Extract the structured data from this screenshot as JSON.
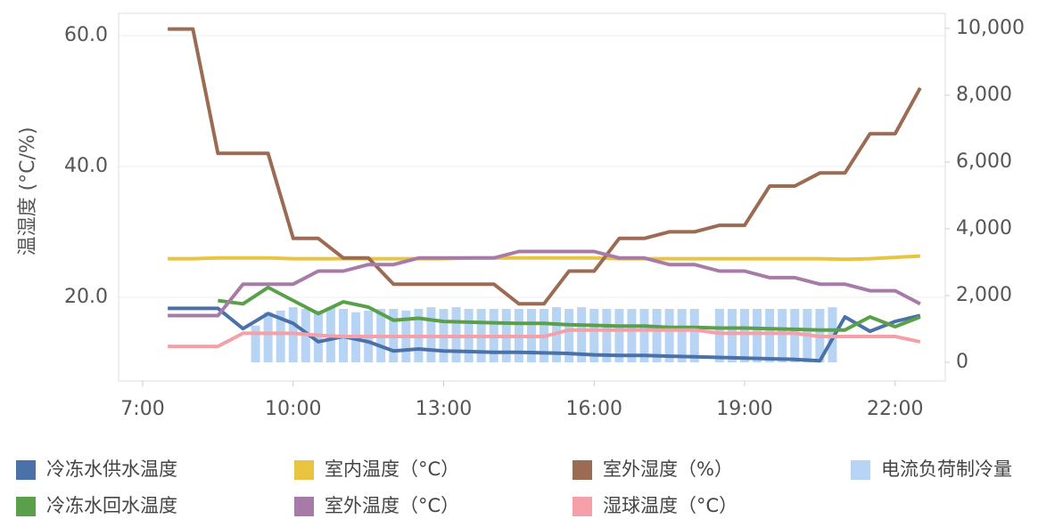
{
  "chart_data": {
    "type": "line",
    "ylabel": "温湿度 (°C/%)",
    "x": [
      7.5,
      8,
      8.5,
      9,
      9.5,
      10,
      10.5,
      11,
      11.5,
      12,
      12.5,
      13,
      13.5,
      14,
      14.5,
      15,
      15.5,
      16,
      16.5,
      17,
      17.5,
      18,
      18.5,
      19,
      19.5,
      20,
      20.5,
      21,
      21.5,
      22,
      22.5
    ],
    "xlim": [
      6.52,
      23.0
    ],
    "xticks": [
      {
        "value": 7,
        "label": "7:00"
      },
      {
        "value": 10,
        "label": "10:00"
      },
      {
        "value": 13,
        "label": "13:00"
      },
      {
        "value": 16,
        "label": "16:00"
      },
      {
        "value": 19,
        "label": "19:00"
      },
      {
        "value": 22,
        "label": "22:00"
      }
    ],
    "ylim": [
      7.2,
      63.4
    ],
    "yticks": [
      {
        "value": 20,
        "label": "20.0"
      },
      {
        "value": 40,
        "label": "40.0"
      },
      {
        "value": 60,
        "label": "60.0"
      }
    ],
    "y2lim": [
      -560,
      10450
    ],
    "y2ticks": [
      0,
      {
        "value": 2000,
        "label": "2,000"
      },
      {
        "value": 4000,
        "label": "4,000"
      },
      {
        "value": 6000,
        "label": "6,000"
      },
      {
        "value": 8000,
        "label": "8,000"
      },
      {
        "value": 10000,
        "label": "10,000"
      }
    ],
    "grid": true,
    "series": [
      {
        "name": "冷冻水供水温度",
        "color": "#4a72a8",
        "values": [
          18.3,
          18.3,
          18.3,
          15.2,
          17.5,
          16.0,
          13.2,
          14.0,
          13.2,
          11.8,
          12.1,
          11.8,
          11.7,
          11.6,
          11.6,
          11.5,
          11.4,
          11.2,
          11.1,
          11.1,
          11.0,
          10.9,
          10.8,
          10.7,
          10.6,
          10.5,
          10.3,
          17.0,
          14.8,
          16.3,
          17.2
        ]
      },
      {
        "name": "室内温度（°C）",
        "color": "#e8c440",
        "values": [
          25.9,
          25.9,
          26.0,
          26.0,
          26.0,
          25.9,
          25.9,
          25.9,
          25.9,
          25.9,
          25.9,
          25.9,
          26.0,
          26.0,
          26.0,
          26.0,
          26.0,
          26.0,
          25.9,
          25.9,
          25.9,
          25.9,
          25.9,
          25.9,
          25.9,
          25.9,
          25.9,
          25.8,
          25.9,
          26.1,
          26.3
        ]
      },
      {
        "name": "室外湿度（%）",
        "color": "#9b6b53",
        "values": [
          61,
          61,
          42,
          42,
          42,
          29,
          29,
          26,
          26,
          22,
          22,
          22,
          22,
          22,
          19,
          19,
          24,
          24,
          29,
          29,
          30,
          30,
          31,
          31,
          37,
          37,
          39,
          39,
          45,
          45,
          52
        ]
      },
      {
        "name": "电流负荷制冷量",
        "color": "#b8d4f5",
        "type": "bar",
        "axis": "y2",
        "x": [
          9.25,
          9.5,
          9.75,
          10,
          10.25,
          10.5,
          10.75,
          11,
          11.25,
          11.5,
          11.75,
          12,
          12.25,
          12.5,
          12.75,
          13,
          13.25,
          13.5,
          13.75,
          14,
          14.25,
          14.5,
          14.75,
          15,
          15.25,
          15.5,
          15.75,
          16,
          16.25,
          16.5,
          16.75,
          17,
          17.25,
          17.5,
          17.75,
          18,
          18.5,
          18.75,
          19,
          19.25,
          19.5,
          19.75,
          20,
          20.25,
          20.5,
          20.75
        ],
        "values": [
          1100,
          1500,
          1550,
          1650,
          1600,
          1550,
          1650,
          1600,
          1500,
          1550,
          1600,
          1600,
          1550,
          1600,
          1650,
          1600,
          1650,
          1600,
          1600,
          1600,
          1600,
          1600,
          1600,
          1600,
          1650,
          1600,
          1650,
          1600,
          1600,
          1600,
          1600,
          1600,
          1600,
          1600,
          1600,
          1600,
          1600,
          1600,
          1600,
          1600,
          1600,
          1600,
          1600,
          1600,
          1600,
          1650
        ]
      },
      {
        "name": "冷冻水回水温度",
        "color": "#5aa04a",
        "values": [
          null,
          null,
          19.5,
          19.0,
          21.5,
          19.5,
          17.5,
          19.3,
          18.5,
          16.5,
          16.8,
          16.3,
          16.2,
          16.1,
          16.0,
          16.0,
          15.8,
          15.7,
          15.6,
          15.6,
          15.4,
          15.4,
          15.3,
          15.3,
          15.2,
          15.1,
          15.0,
          15.0,
          17.0,
          15.5,
          17.0
        ]
      },
      {
        "name": "室外温度（°C）",
        "color": "#a87aa8",
        "values": [
          17.2,
          17.2,
          17.2,
          22,
          22,
          22,
          24,
          24,
          25,
          25,
          26,
          26,
          26,
          26,
          27,
          27,
          27,
          27,
          26,
          26,
          25,
          25,
          24,
          24,
          23,
          23,
          22,
          22,
          21,
          21,
          19
        ]
      },
      {
        "name": "湿球温度（°C）",
        "color": "#f5a0a8",
        "values": [
          12.5,
          12.5,
          12.5,
          14.5,
          14.5,
          14.5,
          14.2,
          14.0,
          14.0,
          14.0,
          14.0,
          14.0,
          14.0,
          14.0,
          14.0,
          14.0,
          15.0,
          15.0,
          15.0,
          15.0,
          15.0,
          15.0,
          14.5,
          14.5,
          14.5,
          14.5,
          14.0,
          14.0,
          14.0,
          14.0,
          13.2
        ]
      }
    ]
  }
}
